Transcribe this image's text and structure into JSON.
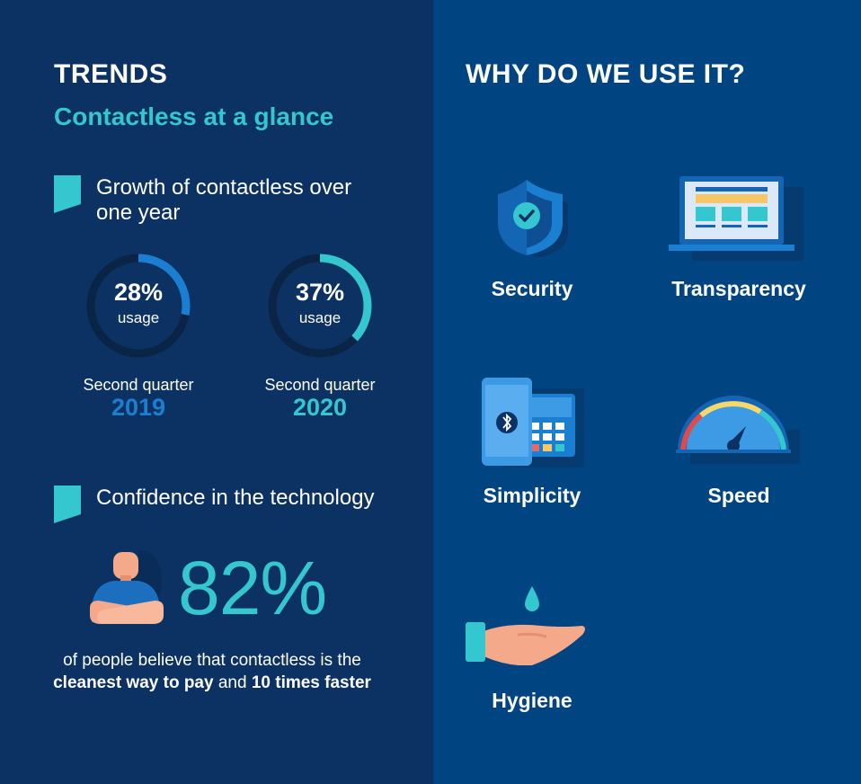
{
  "left": {
    "title": "TRENDS",
    "subtitle": "Contactless at a glance",
    "growth": {
      "label": "Growth of contactless over one year",
      "rings": [
        {
          "percent_text": "28%",
          "usage_label": "usage",
          "quarter": "Second quarter",
          "year": "2019",
          "value": 28,
          "color": "#1b7fd1"
        },
        {
          "percent_text": "37%",
          "usage_label": "usage",
          "quarter": "Second quarter",
          "year": "2020",
          "value": 37,
          "color": "#35c7cf"
        }
      ]
    },
    "confidence": {
      "label": "Confidence in the technology",
      "percent_text": "82%",
      "caption_part1": "of people believe that contactless is the",
      "caption_bold1": "cleanest way to pay",
      "caption_part2": " and ",
      "caption_bold2": "10 times faster"
    }
  },
  "right": {
    "title": "WHY DO WE USE IT?",
    "reasons": [
      {
        "label": "Security",
        "icon": "shield-check-icon"
      },
      {
        "label": "Transparency",
        "icon": "laptop-icon"
      },
      {
        "label": "Simplicity",
        "icon": "phone-terminal-icon"
      },
      {
        "label": "Speed",
        "icon": "speedometer-icon"
      },
      {
        "label": "Hygiene",
        "icon": "hand-water-drop-icon"
      }
    ]
  },
  "colors": {
    "left_bg": "#0b3263",
    "right_bg": "#014482",
    "accent_teal": "#35c7cf",
    "accent_blue": "#1b7fd1"
  }
}
